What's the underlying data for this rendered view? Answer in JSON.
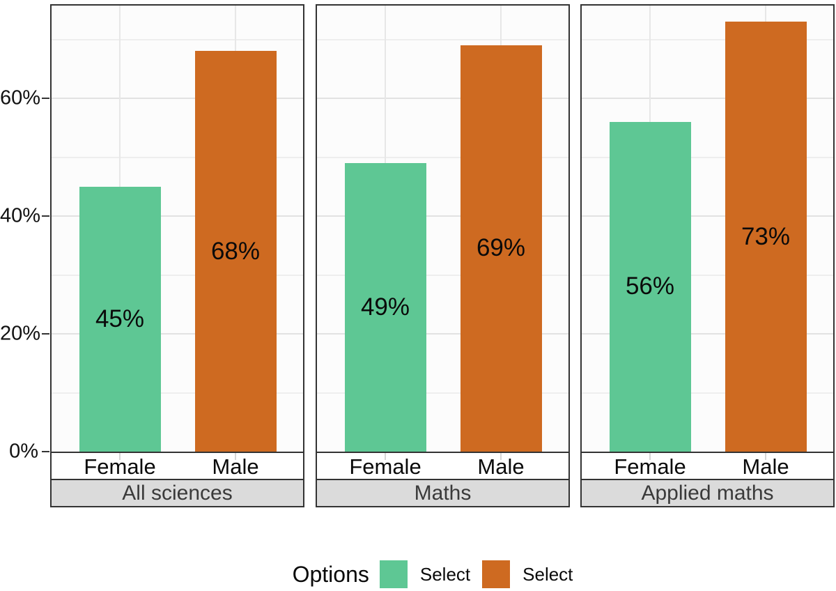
{
  "chart_data": {
    "type": "bar",
    "title": "",
    "faceted": true,
    "facets": [
      "All sciences",
      "Maths",
      "Applied maths"
    ],
    "categories": [
      "Female",
      "Male"
    ],
    "series": [
      {
        "name": "Select",
        "color": "#5ec794",
        "values": [
          45,
          49,
          56
        ]
      },
      {
        "name": "Select",
        "color": "#ce6a21",
        "values": [
          68,
          69,
          73
        ]
      }
    ],
    "value_suffix": "%",
    "bar_labels": [
      [
        "45%",
        "68%"
      ],
      [
        "49%",
        "69%"
      ],
      [
        "56%",
        "73%"
      ]
    ],
    "y_axis": {
      "ticks": [
        {
          "value": 0,
          "label": "0%"
        },
        {
          "value": 20,
          "label": "20%"
        },
        {
          "value": 40,
          "label": "40%"
        },
        {
          "value": 60,
          "label": "60%"
        }
      ],
      "minor_gridlines": [
        10,
        30,
        50,
        70
      ],
      "major_gridlines": [
        20,
        40,
        60
      ],
      "range": [
        0,
        75.7
      ]
    },
    "grid": true,
    "legend": {
      "title": "Options",
      "position": "bottom",
      "items": [
        {
          "label": "Select",
          "color": "#5ec794"
        },
        {
          "label": "Select",
          "color": "#ce6a21"
        }
      ]
    },
    "colors": {
      "panel_border": "#333333",
      "strip_background": "#dbdbdb",
      "strip_text": "#3a3a3a",
      "female_bar": "#5ec794",
      "male_bar": "#ce6a21"
    }
  }
}
